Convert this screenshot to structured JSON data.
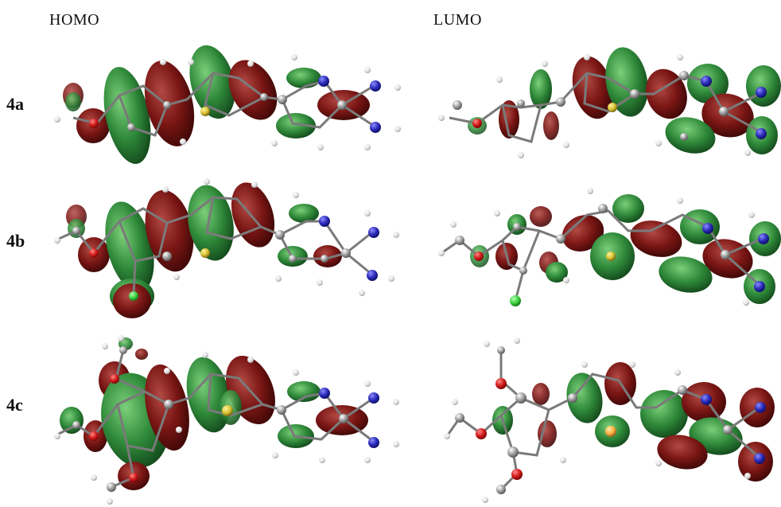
{
  "columns": {
    "left": "HOMO",
    "right": "LUMO"
  },
  "rows": [
    {
      "id": "4a",
      "label": "4a"
    },
    {
      "id": "4b",
      "label": "4b"
    },
    {
      "id": "4c",
      "label": "4c"
    }
  ],
  "colors": {
    "lobe_positive": "#2f8a3a",
    "lobe_negative": "#7a1614",
    "carbon": "#8c8c8c",
    "hydrogen": "#e6e6e6",
    "nitrogen": "#3030c0",
    "oxygen": "#d01818",
    "sulfur": "#d8c030",
    "chlorine": "#40d040",
    "bond": "#7a7a7a"
  }
}
